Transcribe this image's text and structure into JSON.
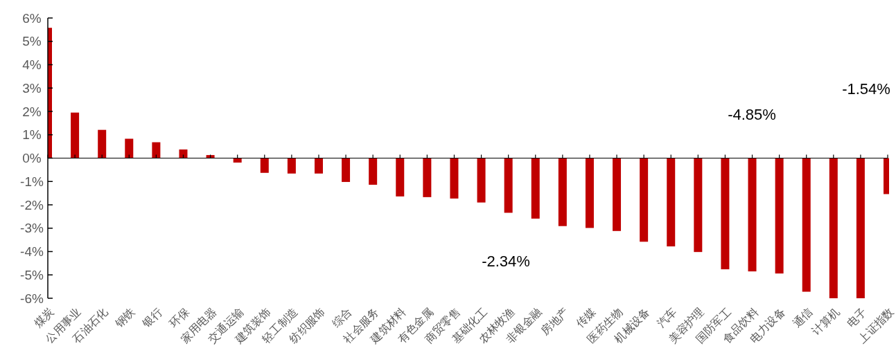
{
  "chart_data": {
    "type": "bar",
    "categories": [
      "煤炭",
      "公用事业",
      "石油石化",
      "钢铁",
      "银行",
      "环保",
      "家用电器",
      "交通运输",
      "建筑装饰",
      "轻工制造",
      "纺织服饰",
      "综合",
      "社会服务",
      "建筑材料",
      "有色金属",
      "商贸零售",
      "基础化工",
      "农林牧渔",
      "非银金融",
      "房地产",
      "传媒",
      "医药生物",
      "机械设备",
      "汽车",
      "美容护理",
      "国防军工",
      "食品饮料",
      "电力设备",
      "通信",
      "计算机",
      "电子",
      "上证指数"
    ],
    "values": [
      5.58,
      1.95,
      1.21,
      0.83,
      0.68,
      0.37,
      0.13,
      -0.19,
      -0.63,
      -0.66,
      -0.66,
      -1.02,
      -1.14,
      -1.64,
      -1.67,
      -1.73,
      -1.9,
      -2.34,
      -2.59,
      -2.91,
      -2.99,
      -3.12,
      -3.58,
      -3.78,
      -4.02,
      -4.76,
      -4.85,
      -4.94,
      -5.72,
      -6.0,
      -6.0,
      -1.54
    ],
    "color": "#c00000",
    "ylim": [
      -6,
      6
    ],
    "yticks": [
      {
        "value": -6,
        "label": "-6%"
      },
      {
        "value": -5,
        "label": "-5%"
      },
      {
        "value": -4,
        "label": "-4%"
      },
      {
        "value": -3,
        "label": "-3%"
      },
      {
        "value": -2,
        "label": "-2%"
      },
      {
        "value": -1,
        "label": "-1%"
      },
      {
        "value": 0,
        "label": "0%"
      },
      {
        "value": 1,
        "label": "1%"
      },
      {
        "value": 2,
        "label": "2%"
      },
      {
        "value": 3,
        "label": "3%"
      },
      {
        "value": 4,
        "label": "4%"
      },
      {
        "value": 5,
        "label": "5%"
      },
      {
        "value": 6,
        "label": "6%"
      }
    ],
    "annotations": [
      "-2.34%",
      "-4.85%",
      "-1.54%"
    ]
  }
}
